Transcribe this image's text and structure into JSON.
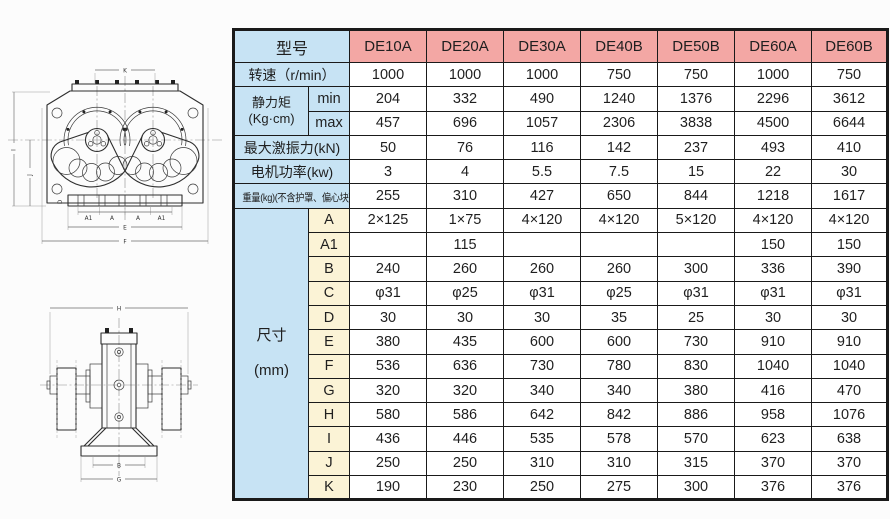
{
  "page": {
    "background": "#fcfcfc"
  },
  "colors": {
    "model_header_pink": "#f3a7a4",
    "label_blue": "#c7e3f4",
    "dim_label_cream": "#fbf3d6",
    "grid_border": "#1a1a1a",
    "text": "#1f1f1f"
  },
  "table": {
    "header_label": "型号",
    "models": [
      "DE10A",
      "DE20A",
      "DE30A",
      "DE40B",
      "DE50B",
      "DE60A",
      "DE60B"
    ],
    "rows": [
      {
        "id": "speed",
        "label": "转速（r/min）",
        "values": [
          "1000",
          "1000",
          "1000",
          "750",
          "750",
          "1000",
          "750"
        ]
      },
      {
        "id": "static-moment-min",
        "label_lines": [
          "静力矩",
          "(Kg·cm)"
        ],
        "group_rowspan": 2,
        "sub": "min",
        "section": "spec",
        "values": [
          "204",
          "332",
          "490",
          "1240",
          "1376",
          "2296",
          "3612"
        ]
      },
      {
        "id": "static-moment-max",
        "sub": "max",
        "section": "spec",
        "values": [
          "457",
          "696",
          "1057",
          "2306",
          "3838",
          "4500",
          "6644"
        ]
      },
      {
        "id": "max-exciting-force",
        "label": "最大激振力(kN)",
        "values": [
          "50",
          "76",
          "116",
          "142",
          "237",
          "493",
          "410"
        ]
      },
      {
        "id": "motor-power",
        "label": "电机功率(kw)",
        "values": [
          "3",
          "4",
          "5.5",
          "7.5",
          "15",
          "22",
          "30"
        ]
      },
      {
        "id": "weight",
        "label": "重量(kg)(不含护罩、偏心块)",
        "small": true,
        "values": [
          "255",
          "310",
          "427",
          "650",
          "844",
          "1218",
          "1617"
        ]
      },
      {
        "id": "dim-a",
        "label_lines": [
          "尺寸",
          "(mm)"
        ],
        "group_rowspan": 12,
        "dims_group": true,
        "sub": "A",
        "section": "dims",
        "values": [
          "2×125",
          "1×75",
          "4×120",
          "4×120",
          "5×120",
          "4×120",
          "4×120"
        ]
      },
      {
        "id": "dim-a1",
        "sub": "A1",
        "section": "dims",
        "values": [
          "",
          "115",
          "",
          "",
          "",
          "150",
          "150"
        ]
      },
      {
        "id": "dim-b",
        "sub": "B",
        "section": "dims",
        "values": [
          "240",
          "260",
          "260",
          "260",
          "300",
          "336",
          "390"
        ]
      },
      {
        "id": "dim-c",
        "sub": "C",
        "section": "dims",
        "values": [
          "φ31",
          "φ25",
          "φ31",
          "φ25",
          "φ31",
          "φ31",
          "φ31"
        ]
      },
      {
        "id": "dim-d",
        "sub": "D",
        "section": "dims",
        "values": [
          "30",
          "30",
          "30",
          "35",
          "25",
          "30",
          "30"
        ]
      },
      {
        "id": "dim-e",
        "sub": "E",
        "section": "dims",
        "values": [
          "380",
          "435",
          "600",
          "600",
          "730",
          "910",
          "910"
        ]
      },
      {
        "id": "dim-f",
        "sub": "F",
        "section": "dims",
        "values": [
          "536",
          "636",
          "730",
          "780",
          "830",
          "1040",
          "1040"
        ]
      },
      {
        "id": "dim-g",
        "sub": "G",
        "section": "dims",
        "values": [
          "320",
          "320",
          "340",
          "340",
          "380",
          "416",
          "470"
        ]
      },
      {
        "id": "dim-h",
        "sub": "H",
        "section": "dims",
        "values": [
          "580",
          "586",
          "642",
          "842",
          "886",
          "958",
          "1076"
        ]
      },
      {
        "id": "dim-i",
        "sub": "I",
        "section": "dims",
        "values": [
          "436",
          "446",
          "535",
          "578",
          "570",
          "623",
          "638"
        ]
      },
      {
        "id": "dim-j",
        "sub": "J",
        "section": "dims",
        "values": [
          "250",
          "250",
          "310",
          "310",
          "315",
          "370",
          "370"
        ]
      },
      {
        "id": "dim-k",
        "sub": "K",
        "section": "dims",
        "values": [
          "190",
          "230",
          "250",
          "275",
          "300",
          "376",
          "376"
        ]
      }
    ]
  },
  "drawings": {
    "front_view": {
      "dim_labels": {
        "k": "K",
        "a1_left": "A1",
        "a_left": "A",
        "a_right": "A",
        "a1_right": "A1",
        "e": "E",
        "f": "F",
        "d": "D",
        "i": "I",
        "j": "J"
      }
    },
    "side_view": {
      "dim_labels": {
        "h": "H",
        "b": "B",
        "g": "G"
      }
    }
  }
}
